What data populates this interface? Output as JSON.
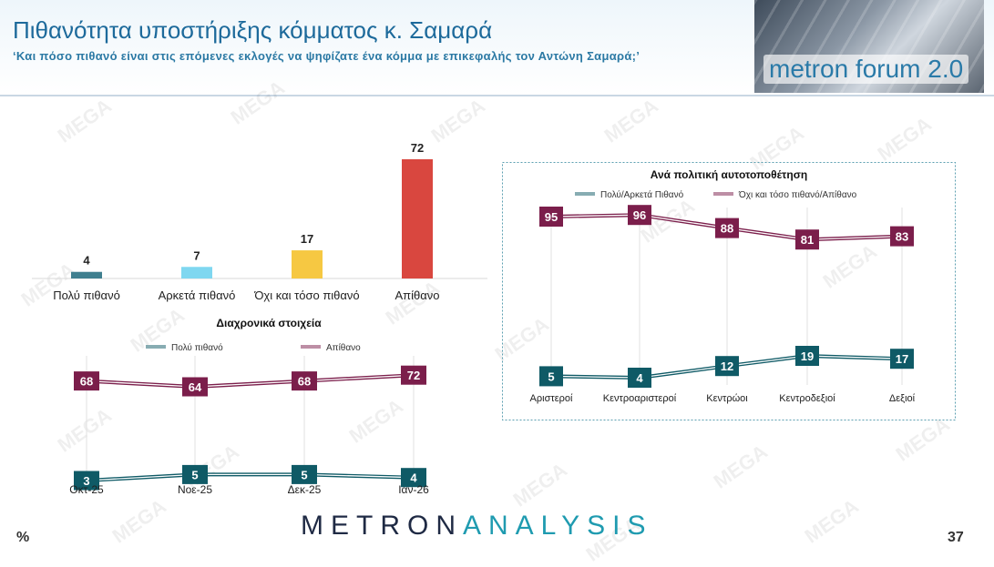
{
  "header": {
    "title": "Πιθανότητα υποστήριξης κόμματος κ. Σαμαρά",
    "subtitle": "‘Και πόσο πιθανό είναι στις επόμενες εκλογές να ψηφίζατε ένα κόμμα με επικεφαλής τον Αντώνη Σαμαρά;’",
    "logo_text": "metron forum 2.0"
  },
  "footer": {
    "brand_part1": "METRON",
    "brand_part2": "ANALYSIS",
    "page_number": "37",
    "percent_sign": "%"
  },
  "watermark_text": "MEGA",
  "colors": {
    "teal": "#2e7d8c",
    "light_blue": "#7fd7f0",
    "yellow": "#f6c842",
    "red": "#d9473f",
    "maroon": "#7b1e4b",
    "dark_teal": "#0f5a66"
  },
  "chart_data": [
    {
      "type": "bar",
      "categories": [
        "Πολύ πιθανό",
        "Αρκετά πιθανό",
        "Όχι και τόσο πιθανό",
        "Απίθανο"
      ],
      "values": [
        4,
        7,
        17,
        72
      ],
      "bar_colors": [
        "#3f7f8f",
        "#7fd7f0",
        "#f6c842",
        "#d9473f"
      ],
      "ylim": [
        0,
        72
      ]
    },
    {
      "type": "line",
      "title": "Διαχρονικά στοιχεία",
      "categories": [
        "Οκτ-25",
        "Νοε-25",
        "Δεκ-25",
        "Ιαν-26"
      ],
      "series": [
        {
          "name": "Πολύ πιθανό",
          "values": [
            3,
            5,
            5,
            4
          ],
          "color": "#0f5a66"
        },
        {
          "name": "Απίθανο",
          "values": [
            68,
            64,
            68,
            72
          ],
          "color": "#7b1e4b"
        }
      ],
      "legend": "top"
    },
    {
      "type": "line",
      "title": "Ανά πολιτική αυτοτοποθέτηση",
      "categories": [
        "Αριστεροί",
        "Κεντροαριστεροί",
        "Κεντρώοι",
        "Κεντροδεξιοί",
        "Δεξιοί"
      ],
      "series": [
        {
          "name": "Πολύ/Αρκετά Πιθανό",
          "values": [
            5,
            4,
            12,
            19,
            17
          ],
          "color": "#0f5a66"
        },
        {
          "name": "Όχι και τόσο πιθανό/Απίθανο",
          "values": [
            95,
            96,
            88,
            81,
            83
          ],
          "color": "#7b1e4b"
        }
      ],
      "legend": "top"
    }
  ]
}
